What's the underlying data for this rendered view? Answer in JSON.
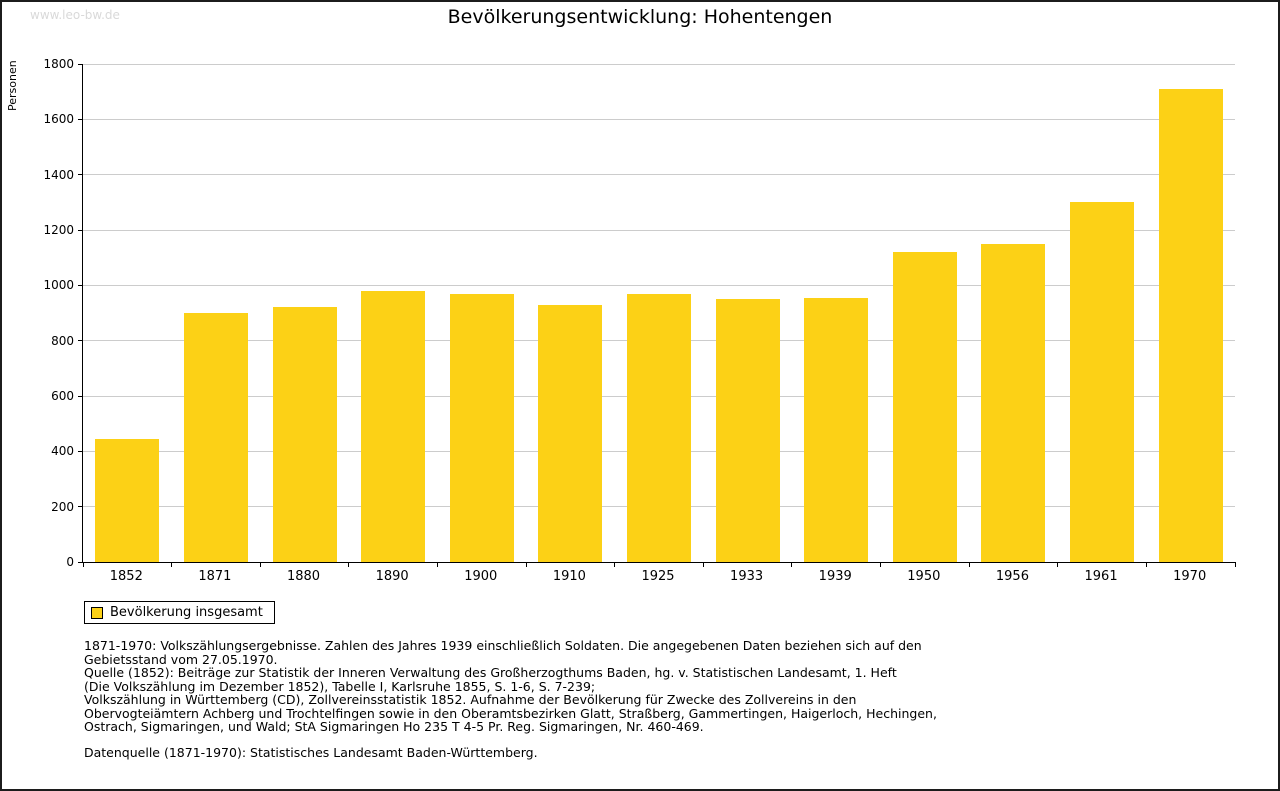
{
  "page": {
    "watermark": "www.leo-bw.de",
    "title": "Bevölkerungsentwicklung: Hohentengen"
  },
  "chart_data": {
    "type": "bar",
    "title": "Bevölkerungsentwicklung: Hohentengen",
    "xlabel": "",
    "ylabel": "Personen",
    "ylim": [
      0,
      1800
    ],
    "yticks": [
      0,
      200,
      400,
      600,
      800,
      1000,
      1200,
      1400,
      1600,
      1800
    ],
    "grid": true,
    "legend_position": "bottom-left",
    "bar_color": "#fcd116",
    "gridline_color": "#cccccc",
    "categories": [
      "1852",
      "1871",
      "1880",
      "1890",
      "1900",
      "1910",
      "1925",
      "1933",
      "1939",
      "1950",
      "1956",
      "1961",
      "1970"
    ],
    "series": [
      {
        "name": "Bevölkerung insgesamt",
        "values": [
          445,
          900,
          920,
          980,
          970,
          930,
          970,
          950,
          955,
          1120,
          1150,
          1300,
          1710
        ]
      }
    ]
  },
  "legend": {
    "label": "Bevölkerung insgesamt"
  },
  "footnotes": {
    "lines": [
      "1871-1970: Volkszählungsergebnisse. Zahlen des Jahres 1939 einschließlich Soldaten. Die angegebenen Daten beziehen sich auf den",
      "Gebietsstand vom 27.05.1970.",
      "Quelle (1852): Beiträge zur Statistik der Inneren Verwaltung des Großherzogthums Baden, hg. v. Statistischen Landesamt, 1. Heft",
      "(Die Volkszählung im Dezember 1852), Tabelle I, Karlsruhe 1855, S. 1-6, S. 7-239;",
      "Volkszählung in Württemberg (CD), Zollvereinsstatistik 1852. Aufnahme der Bevölkerung für Zwecke des Zollvereins in den",
      "Obervogteiämtern Achberg und Trochtelfingen sowie in den Oberamtsbezirken Glatt, Straßberg, Gammertingen, Haigerloch, Hechingen,",
      "Ostrach, Sigmaringen, und Wald; StA Sigmaringen Ho 235 T 4-5 Pr. Reg. Sigmaringen, Nr. 460-469."
    ],
    "datasource": "Datenquelle (1871-1970): Statistisches Landesamt Baden-Württemberg."
  }
}
